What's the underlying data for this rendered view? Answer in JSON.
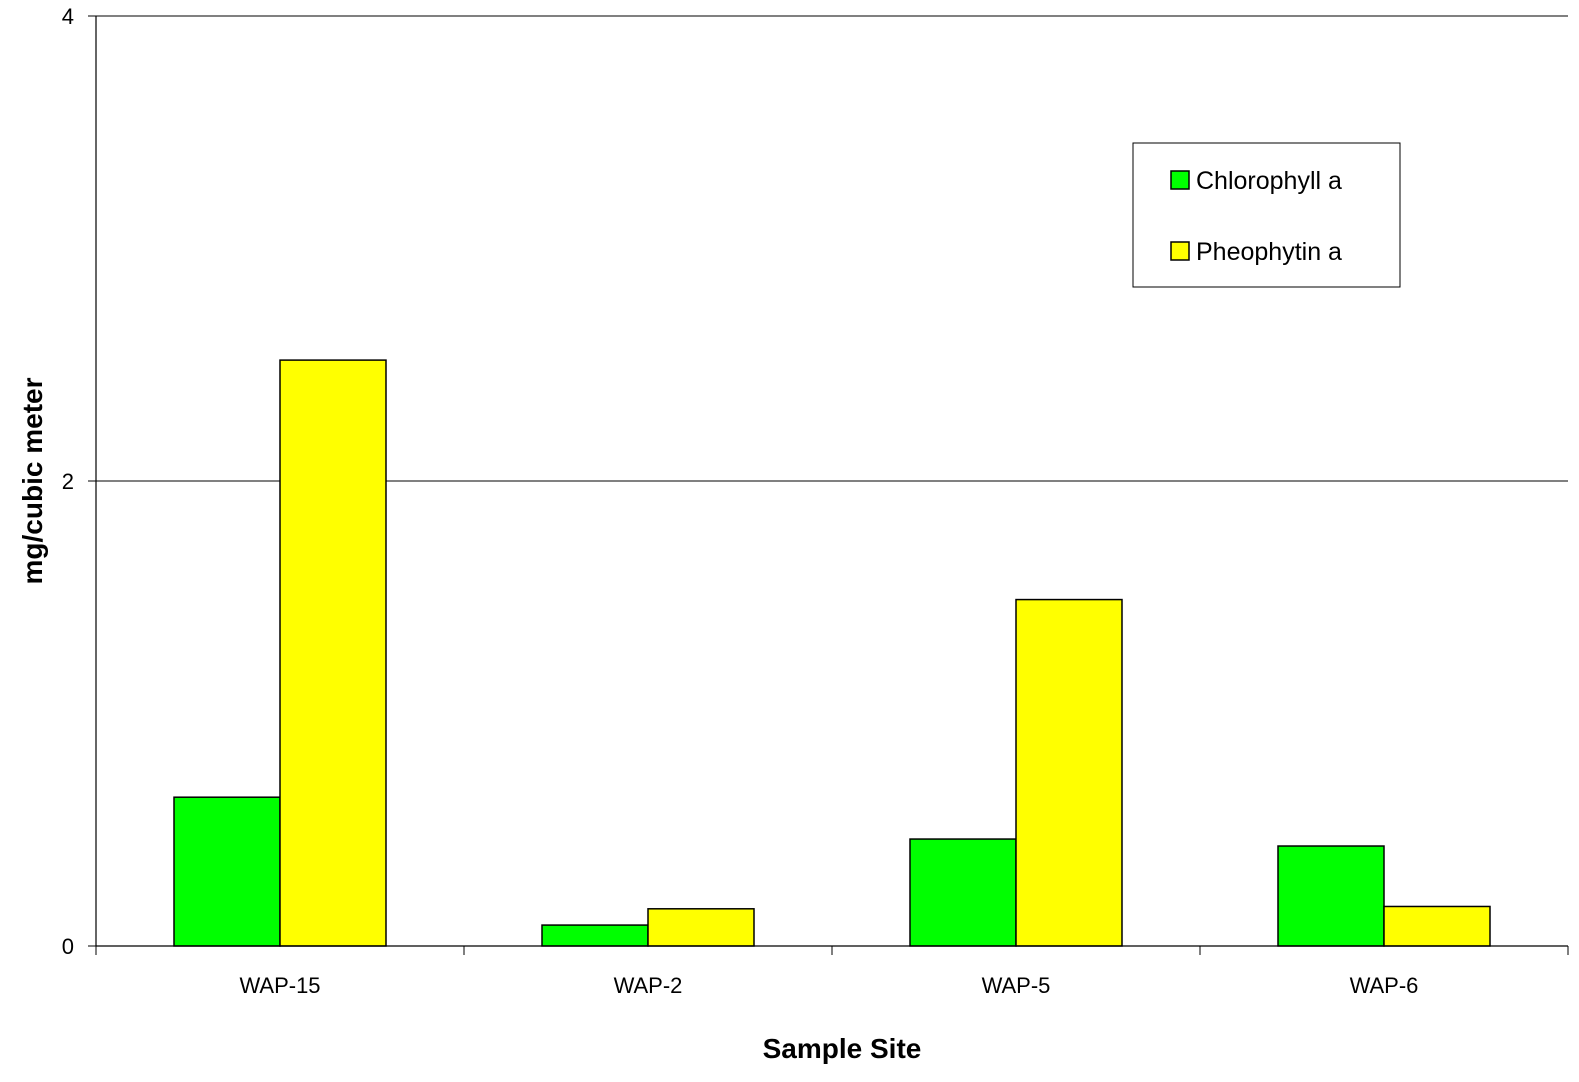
{
  "chart_data": {
    "type": "bar",
    "title": "",
    "xlabel": "Sample Site",
    "ylabel": "mg/cubic meter",
    "categories": [
      "WAP-15",
      "WAP-2",
      "WAP-5",
      "WAP-6"
    ],
    "series": [
      {
        "name": "Chlorophyll a",
        "values": [
          0.64,
          0.09,
          0.46,
          0.43
        ],
        "color": "#00ff00"
      },
      {
        "name": "Pheophytin a",
        "values": [
          2.52,
          0.16,
          1.49,
          0.17
        ],
        "color": "#ffff00"
      }
    ],
    "ylim": [
      0,
      4
    ],
    "yticks": [
      "0",
      "2",
      "4"
    ],
    "grid": true,
    "legend_position": "upper-right"
  }
}
